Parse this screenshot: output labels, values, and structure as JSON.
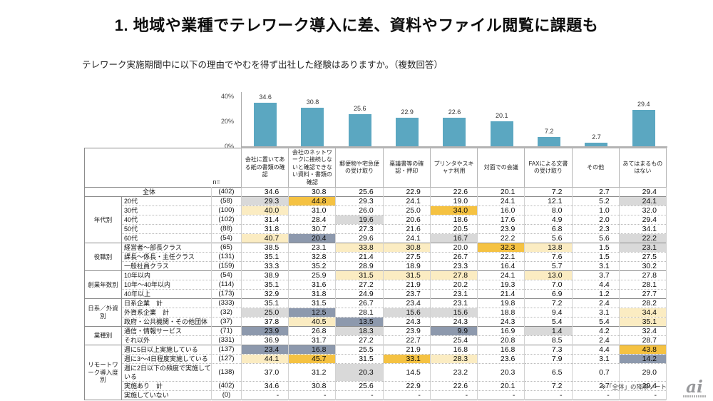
{
  "page": {
    "title": "1. 地域や業種でテレワーク導入に差、資料やファイル閲覧に課題も",
    "question": "テレワーク実施期間中に以下の理由でやむを得ず出社した経験はありますか。（複数回答）",
    "footnote": "※「全体」の降順ソート",
    "logo_text": "ai"
  },
  "chart_data": {
    "type": "bar",
    "title": "",
    "categories": [
      "会社に置いてある紙の書類の確認",
      "会社のネットワークに接続しないと確認できない資料・書類の確認",
      "郵便物や宅急便の受け取り",
      "稟議書等の確認・押印",
      "プリンタやスキャナ利用",
      "対面での会議",
      "FAXによる文書の受け取り",
      "その他",
      "あてはまるものはない"
    ],
    "values": [
      34.6,
      30.8,
      25.6,
      22.9,
      22.6,
      20.1,
      7.2,
      2.7,
      29.4
    ],
    "xlabel": "",
    "ylabel": "%",
    "yticks": [
      "40%",
      "20%",
      "0%"
    ],
    "ylim": [
      0,
      44
    ],
    "grid": false,
    "legend": false,
    "bar_color": "#5BA7C1"
  },
  "table": {
    "n_label": "n=",
    "columns": [
      "会社に置いてある紙の書類の確認",
      "会社のネットワークに接続しないと確認できない資料・書類の確認",
      "郵便物や宅急便の受け取り",
      "稟議書等の確認・押印",
      "プリンタやスキャナ利用",
      "対面での会議",
      "FAXによる文書の受け取り",
      "その他",
      "あてはまるものはない"
    ],
    "highlight_colors": {
      "o": "#F5C242",
      "y": "#FBECC2",
      "g": "#D9D9D9",
      "d": "#8D99AD"
    },
    "groups": [
      {
        "group": "",
        "rows": [
          {
            "label": "全体",
            "n": "(402)",
            "values": [
              "34.6",
              "30.8",
              "25.6",
              "22.9",
              "22.6",
              "20.1",
              "7.2",
              "2.7",
              "29.4"
            ]
          }
        ]
      },
      {
        "group": "年代別",
        "rows": [
          {
            "label": "20代",
            "n": "(58)",
            "values": [
              "29.3",
              "44.8",
              "29.3",
              "24.1",
              "19.0",
              "24.1",
              "12.1",
              "5.2",
              "24.1"
            ],
            "hl": [
              "g",
              "o",
              "",
              "",
              "",
              "",
              "",
              "",
              "g"
            ]
          },
          {
            "label": "30代",
            "n": "(100)",
            "values": [
              "40.0",
              "31.0",
              "26.0",
              "25.0",
              "34.0",
              "16.0",
              "8.0",
              "1.0",
              "32.0"
            ],
            "hl": [
              "y",
              "",
              "",
              "",
              "o",
              "",
              "",
              "",
              ""
            ]
          },
          {
            "label": "40代",
            "n": "(102)",
            "values": [
              "31.4",
              "28.4",
              "19.6",
              "20.6",
              "18.6",
              "17.6",
              "4.9",
              "2.0",
              "29.4"
            ],
            "hl": [
              "",
              "",
              "g",
              "",
              "",
              "",
              "",
              "",
              ""
            ]
          },
          {
            "label": "50代",
            "n": "(88)",
            "values": [
              "31.8",
              "30.7",
              "27.3",
              "21.6",
              "20.5",
              "23.9",
              "6.8",
              "2.3",
              "34.1"
            ]
          },
          {
            "label": "60代",
            "n": "(54)",
            "values": [
              "40.7",
              "20.4",
              "29.6",
              "24.1",
              "16.7",
              "22.2",
              "5.6",
              "5.6",
              "22.2"
            ],
            "hl": [
              "y",
              "d",
              "",
              "",
              "g",
              "",
              "",
              "",
              "g"
            ]
          }
        ]
      },
      {
        "group": "役職別",
        "rows": [
          {
            "label": "経営者〜部長クラス",
            "n": "(65)",
            "values": [
              "38.5",
              "23.1",
              "33.8",
              "30.8",
              "20.0",
              "32.3",
              "13.8",
              "1.5",
              "23.1"
            ],
            "hl": [
              "",
              "",
              "y",
              "y",
              "",
              "o",
              "y",
              "",
              "g"
            ]
          },
          {
            "label": "課長〜係長・主任クラス",
            "n": "(131)",
            "values": [
              "35.1",
              "32.8",
              "21.4",
              "27.5",
              "26.7",
              "22.1",
              "7.6",
              "1.5",
              "27.5"
            ]
          },
          {
            "label": "一般社員クラス",
            "n": "(159)",
            "values": [
              "33.3",
              "35.2",
              "28.9",
              "18.9",
              "23.3",
              "16.4",
              "5.7",
              "3.1",
              "30.2"
            ]
          }
        ]
      },
      {
        "group": "創業年数別",
        "rows": [
          {
            "label": "10年以内",
            "n": "(54)",
            "values": [
              "38.9",
              "25.9",
              "31.5",
              "31.5",
              "27.8",
              "24.1",
              "13.0",
              "3.7",
              "27.8"
            ],
            "hl": [
              "",
              "",
              "y",
              "y",
              "y",
              "",
              "y",
              "",
              ""
            ]
          },
          {
            "label": "10年〜40年以内",
            "n": "(114)",
            "values": [
              "35.1",
              "31.6",
              "27.2",
              "21.9",
              "20.2",
              "19.3",
              "7.0",
              "4.4",
              "28.1"
            ]
          },
          {
            "label": "40年以上",
            "n": "(173)",
            "values": [
              "32.9",
              "31.8",
              "24.9",
              "23.7",
              "23.1",
              "21.4",
              "6.9",
              "1.2",
              "27.7"
            ]
          }
        ]
      },
      {
        "group": "日系／外資別",
        "rows": [
          {
            "label": "日系企業　計",
            "n": "(333)",
            "values": [
              "35.1",
              "31.5",
              "26.7",
              "23.4",
              "23.1",
              "19.8",
              "7.2",
              "2.4",
              "28.2"
            ]
          },
          {
            "label": "外資系企業　計",
            "n": "(32)",
            "values": [
              "25.0",
              "12.5",
              "28.1",
              "15.6",
              "15.6",
              "18.8",
              "9.4",
              "3.1",
              "34.4"
            ],
            "hl": [
              "g",
              "d",
              "",
              "g",
              "g",
              "",
              "",
              "",
              "y"
            ]
          },
          {
            "label": "政府・公共機関・その他団体",
            "n": "(37)",
            "values": [
              "37.8",
              "40.5",
              "13.5",
              "24.3",
              "24.3",
              "24.3",
              "5.4",
              "5.4",
              "35.1"
            ],
            "hl": [
              "",
              "y",
              "d",
              "",
              "",
              "",
              "",
              "",
              "y"
            ]
          }
        ]
      },
      {
        "group": "業種別",
        "rows": [
          {
            "label": "通信・情報サービス",
            "n": "(71)",
            "values": [
              "23.9",
              "26.8",
              "18.3",
              "23.9",
              "9.9",
              "16.9",
              "1.4",
              "4.2",
              "32.4"
            ],
            "hl": [
              "d",
              "",
              "g",
              "",
              "d",
              "",
              "g",
              "",
              ""
            ]
          },
          {
            "label": "それ以外",
            "n": "(331)",
            "values": [
              "36.9",
              "31.7",
              "27.2",
              "22.7",
              "25.4",
              "20.8",
              "8.5",
              "2.4",
              "28.7"
            ]
          }
        ]
      },
      {
        "group": "リモートワーク導入度別",
        "rows": [
          {
            "label": "週に5日以上実施している",
            "n": "(137)",
            "values": [
              "23.4",
              "16.8",
              "25.5",
              "21.9",
              "16.8",
              "16.8",
              "7.3",
              "4.4",
              "43.8"
            ],
            "hl": [
              "d",
              "d",
              "",
              "",
              "",
              "",
              "",
              "",
              "o"
            ]
          },
          {
            "label": "週に3〜4日程度実施している",
            "n": "(127)",
            "values": [
              "44.1",
              "45.7",
              "31.5",
              "33.1",
              "28.3",
              "23.6",
              "7.9",
              "3.1",
              "14.2"
            ],
            "hl": [
              "y",
              "o",
              "",
              "o",
              "y",
              "",
              "",
              "",
              "d"
            ]
          },
          {
            "label": "週に2日以下の頻度で実施している",
            "n": "(138)",
            "values": [
              "37.0",
              "31.2",
              "20.3",
              "14.5",
              "23.2",
              "20.3",
              "6.5",
              "0.7",
              "29.0"
            ],
            "hl": [
              "",
              "",
              "g",
              "",
              "",
              "",
              "",
              "",
              ""
            ]
          },
          {
            "label": "実施あり　計",
            "n": "(402)",
            "values": [
              "34.6",
              "30.8",
              "25.6",
              "22.9",
              "22.6",
              "20.1",
              "7.2",
              "2.7",
              "29.4"
            ]
          },
          {
            "label": "実施していない",
            "n": "(0)",
            "values": [
              "-",
              "-",
              "-",
              "-",
              "-",
              "-",
              "-",
              "-",
              "-"
            ]
          }
        ]
      }
    ]
  }
}
